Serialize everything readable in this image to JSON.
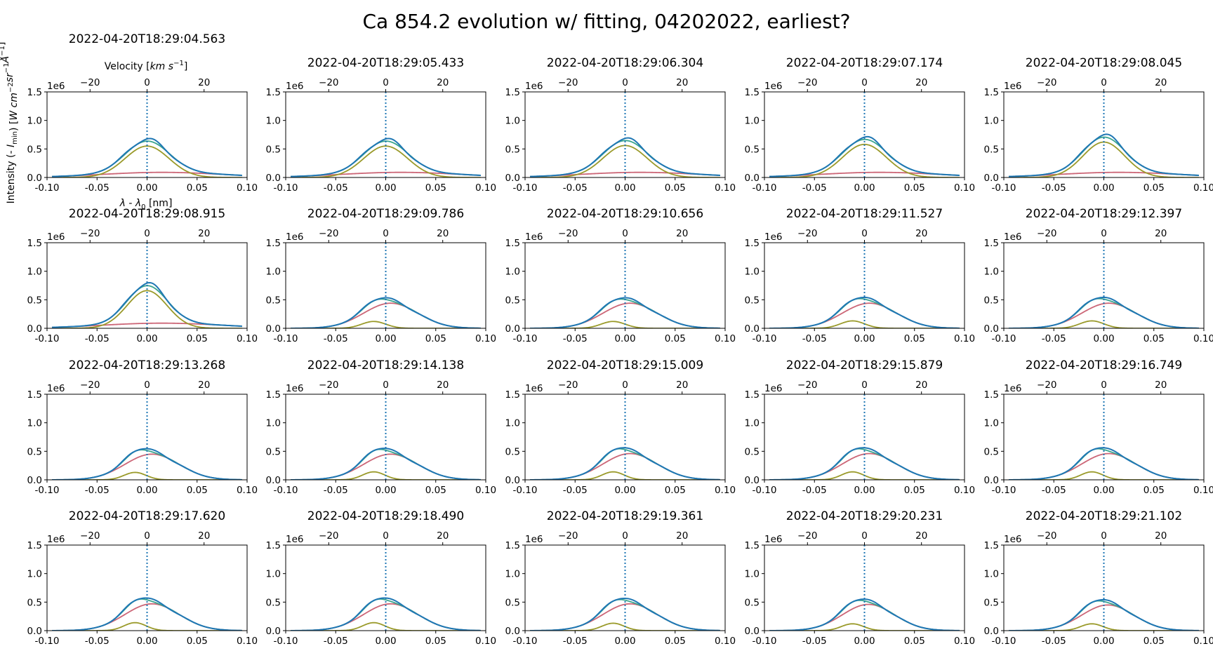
{
  "figure": {
    "suptitle": "Ca 854.2 evolution w/ fitting, 04202022, earliest?",
    "ylabel": "Intensity (- I_min) [W cm^-2 sr^-1 Å^-1]",
    "xlabel": "λ - λ0 [nm]",
    "top_xlabel": "Velocity [km s^-1]",
    "offset_text": "1e6"
  },
  "colors": {
    "observed": "#1f77b4",
    "total_fit": "#3aa58f",
    "component_1": "#9a9a2a",
    "component_2": "#cc6677",
    "zero_line": "#1f77b4"
  },
  "axes_common": {
    "xlim": [
      -0.1,
      0.1
    ],
    "ylim": [
      0,
      1.5
    ],
    "xticks": [
      -0.1,
      -0.05,
      0.0,
      0.05,
      0.1
    ],
    "xtick_labels": [
      "-0.10",
      "-0.05",
      "0.00",
      "0.05",
      "0.10"
    ],
    "yticks": [
      0.0,
      0.5,
      1.0,
      1.5
    ],
    "ytick_labels": [
      "0.0",
      "0.5",
      "1.0",
      "1.5"
    ],
    "velocity_ticks": [
      -20,
      0,
      20
    ],
    "velocity_tick_labels": [
      "−20",
      "0",
      "20"
    ]
  },
  "chart_data": {
    "type": "line",
    "units_y": "1e6 W cm^-2 sr^-1 Å^-1",
    "panels": [
      {
        "time": "2022-04-20T18:29:04.563",
        "c1": [
          0.55,
          0.0,
          0.022
        ],
        "c2": [
          0.09,
          0.015,
          0.06
        ]
      },
      {
        "time": "2022-04-20T18:29:05.433",
        "c1": [
          0.55,
          0.0,
          0.022
        ],
        "c2": [
          0.09,
          0.015,
          0.06
        ]
      },
      {
        "time": "2022-04-20T18:29:06.304",
        "c1": [
          0.56,
          0.0,
          0.022
        ],
        "c2": [
          0.09,
          0.015,
          0.06
        ]
      },
      {
        "time": "2022-04-20T18:29:07.174",
        "c1": [
          0.58,
          0.0,
          0.022
        ],
        "c2": [
          0.09,
          0.015,
          0.06
        ]
      },
      {
        "time": "2022-04-20T18:29:08.045",
        "c1": [
          0.62,
          0.0,
          0.021
        ],
        "c2": [
          0.09,
          0.015,
          0.06
        ]
      },
      {
        "time": "2022-04-20T18:29:08.915",
        "c1": [
          0.66,
          0.0,
          0.02
        ],
        "c2": [
          0.09,
          0.015,
          0.06
        ]
      },
      {
        "time": "2022-04-20T18:29:09.786",
        "c1": [
          0.12,
          -0.012,
          0.012
        ],
        "c2": [
          0.44,
          0.005,
          0.027
        ]
      },
      {
        "time": "2022-04-20T18:29:10.656",
        "c1": [
          0.12,
          -0.012,
          0.012
        ],
        "c2": [
          0.44,
          0.005,
          0.027
        ]
      },
      {
        "time": "2022-04-20T18:29:11.527",
        "c1": [
          0.13,
          -0.012,
          0.012
        ],
        "c2": [
          0.44,
          0.005,
          0.027
        ]
      },
      {
        "time": "2022-04-20T18:29:12.397",
        "c1": [
          0.13,
          -0.012,
          0.012
        ],
        "c2": [
          0.44,
          0.005,
          0.027
        ]
      },
      {
        "time": "2022-04-20T18:29:13.268",
        "c1": [
          0.13,
          -0.012,
          0.011
        ],
        "c2": [
          0.45,
          0.005,
          0.027
        ]
      },
      {
        "time": "2022-04-20T18:29:14.138",
        "c1": [
          0.14,
          -0.012,
          0.011
        ],
        "c2": [
          0.45,
          0.005,
          0.027
        ]
      },
      {
        "time": "2022-04-20T18:29:15.009",
        "c1": [
          0.14,
          -0.012,
          0.011
        ],
        "c2": [
          0.46,
          0.005,
          0.027
        ]
      },
      {
        "time": "2022-04-20T18:29:15.879",
        "c1": [
          0.14,
          -0.012,
          0.011
        ],
        "c2": [
          0.46,
          0.005,
          0.027
        ]
      },
      {
        "time": "2022-04-20T18:29:16.749",
        "c1": [
          0.14,
          -0.012,
          0.011
        ],
        "c2": [
          0.46,
          0.005,
          0.027
        ]
      },
      {
        "time": "2022-04-20T18:29:17.620",
        "c1": [
          0.14,
          -0.012,
          0.011
        ],
        "c2": [
          0.47,
          0.005,
          0.027
        ]
      },
      {
        "time": "2022-04-20T18:29:18.490",
        "c1": [
          0.14,
          -0.012,
          0.011
        ],
        "c2": [
          0.47,
          0.005,
          0.027
        ]
      },
      {
        "time": "2022-04-20T18:29:19.361",
        "c1": [
          0.13,
          -0.012,
          0.011
        ],
        "c2": [
          0.47,
          0.005,
          0.027
        ]
      },
      {
        "time": "2022-04-20T18:29:20.231",
        "c1": [
          0.12,
          -0.012,
          0.011
        ],
        "c2": [
          0.46,
          0.004,
          0.026
        ]
      },
      {
        "time": "2022-04-20T18:29:21.102",
        "c1": [
          0.12,
          -0.012,
          0.011
        ],
        "c2": [
          0.45,
          0.004,
          0.026
        ]
      }
    ]
  }
}
